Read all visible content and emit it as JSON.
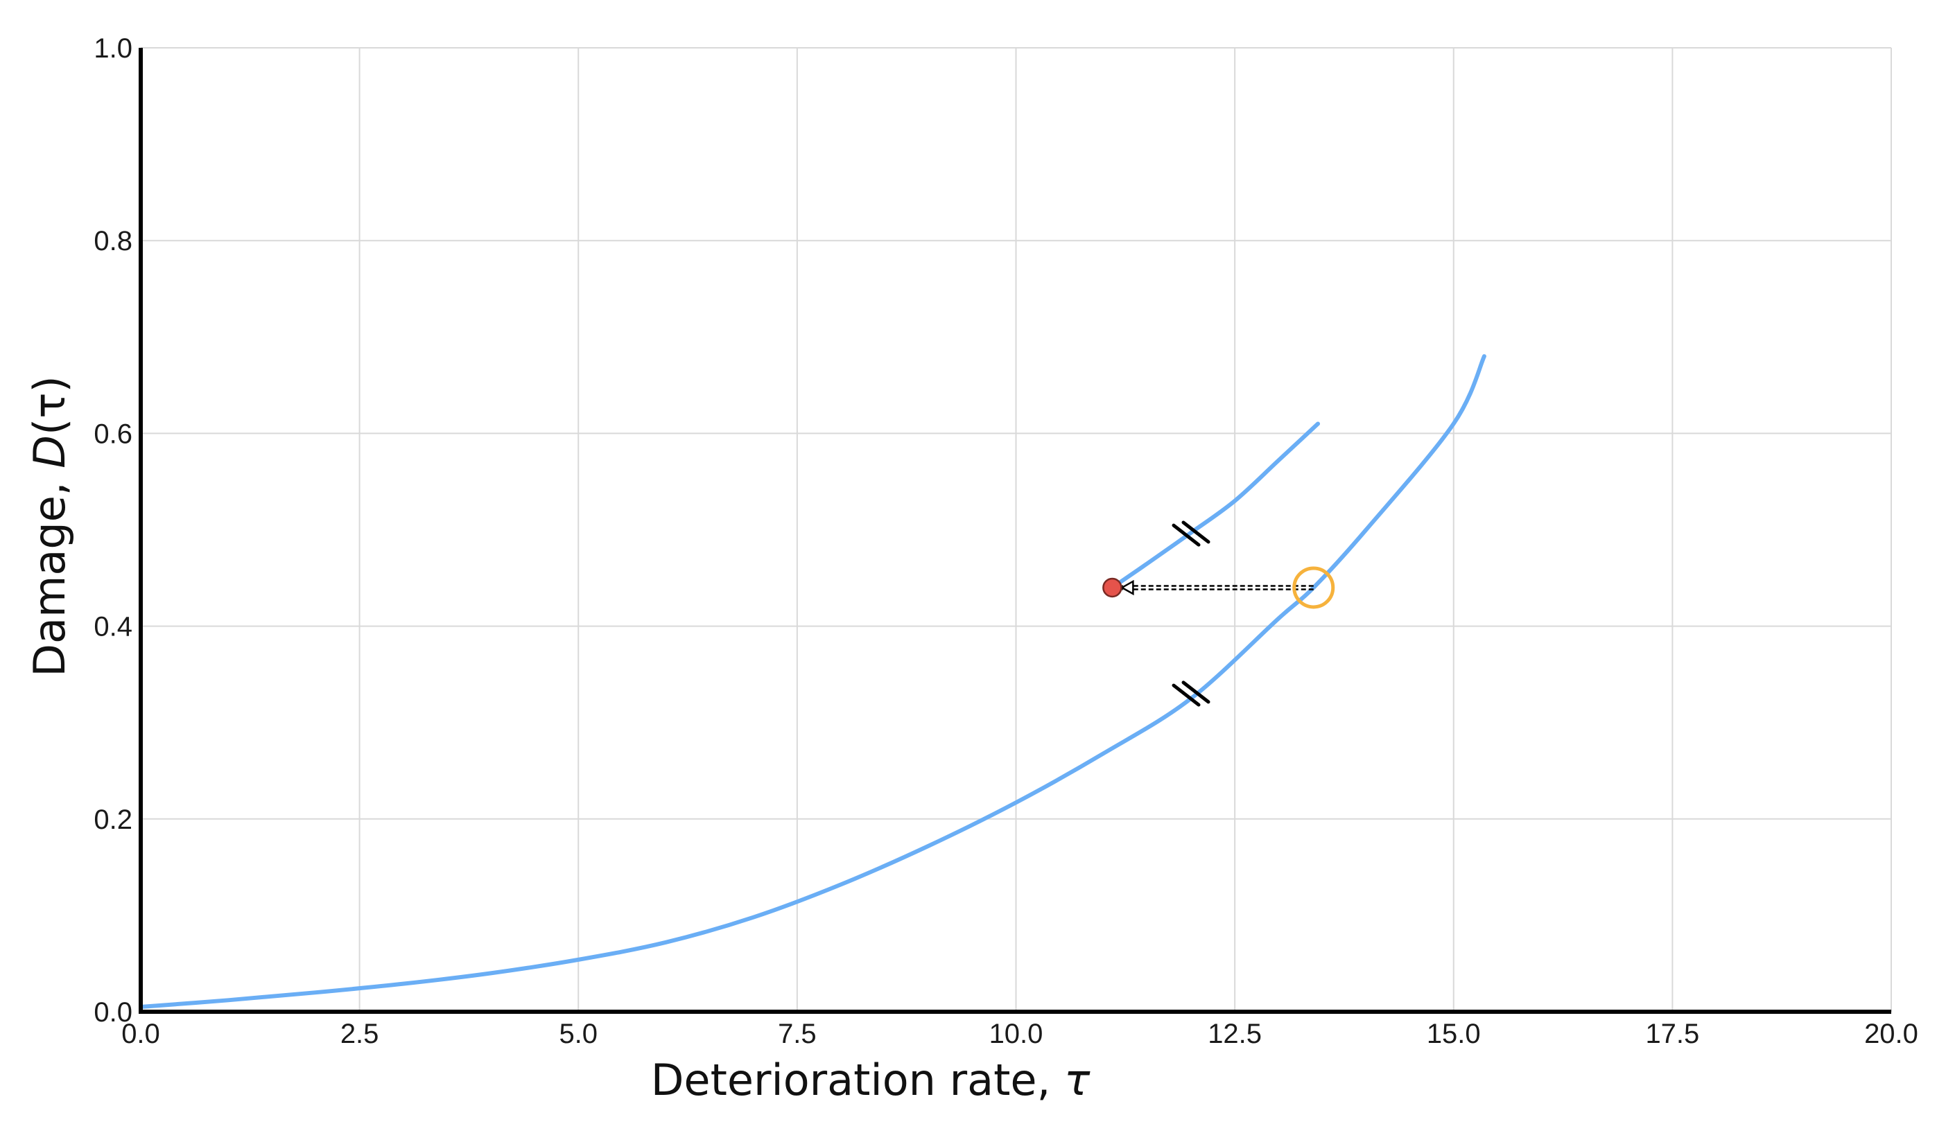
{
  "chart_data": {
    "type": "line",
    "xlabel": "Deterioration rate, ",
    "xlabel_symbol": "τ",
    "ylabel": "Damage, ",
    "ylabel_symbol_main": "D",
    "ylabel_symbol_arg": "(τ)",
    "xlim": [
      0,
      20
    ],
    "ylim": [
      0,
      1
    ],
    "x_ticks": [
      "0.0",
      "2.5",
      "5.0",
      "7.5",
      "10.0",
      "12.5",
      "15.0",
      "17.5",
      "20.0"
    ],
    "y_ticks": [
      "0.0",
      "0.2",
      "0.4",
      "0.6",
      "0.8",
      "1.0"
    ],
    "grid": true,
    "colors": {
      "series": "#6aaef5",
      "marker_fill": "#e5534b",
      "marker_stroke": "#7a2a24",
      "highlight_ring": "#f6b23c",
      "arrow": "#000000"
    },
    "series": [
      {
        "x": [
          0,
          1,
          2,
          3,
          4,
          5,
          6,
          7,
          8,
          9,
          10,
          11,
          12,
          13,
          13.4,
          14,
          15,
          15.35
        ],
        "y": [
          0.005,
          0.012,
          0.02,
          0.029,
          0.04,
          0.054,
          0.072,
          0.098,
          0.132,
          0.172,
          0.217,
          0.268,
          0.325,
          0.408,
          0.44,
          0.5,
          0.61,
          0.68
        ]
      },
      {
        "x": [
          11.1,
          11.5,
          12,
          12.5,
          13,
          13.45
        ],
        "y": [
          0.44,
          0.465,
          0.497,
          0.53,
          0.572,
          0.61
        ]
      }
    ],
    "annotations": {
      "break_marks": [
        {
          "x": 12.0,
          "y": 0.33
        },
        {
          "x": 12.0,
          "y": 0.496
        }
      ],
      "highlight_point": {
        "x": 13.4,
        "y": 0.44
      },
      "start_point": {
        "x": 11.1,
        "y": 0.44
      },
      "arrow": {
        "from": {
          "x": 13.4,
          "y": 0.44
        },
        "to": {
          "x": 11.1,
          "y": 0.44
        }
      }
    }
  }
}
